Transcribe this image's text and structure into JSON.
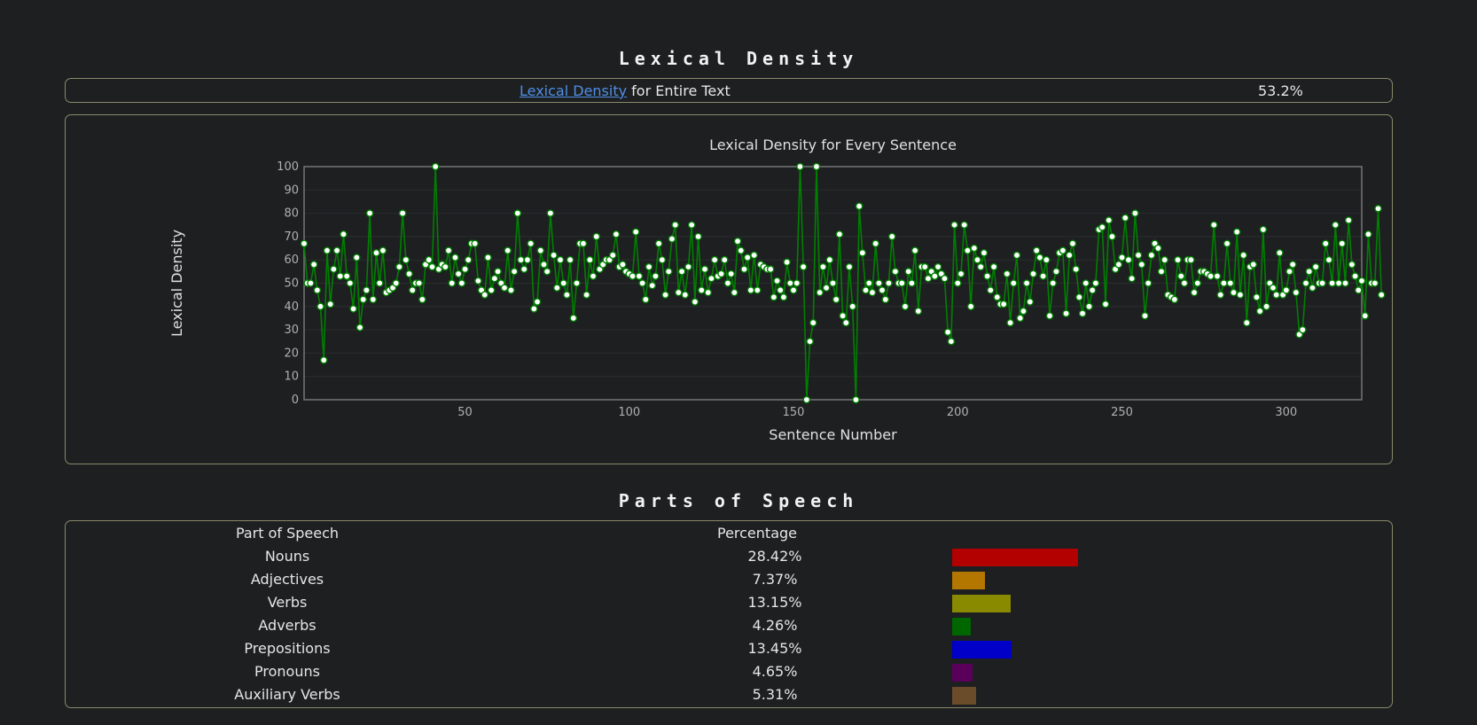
{
  "lexical_density": {
    "section_title": "Lexical Density",
    "link_text": "Lexical Density",
    "label_rest": " for Entire Text",
    "overall_value": "53.2%"
  },
  "parts_of_speech": {
    "section_title": "Parts of Speech",
    "col_part": "Part of Speech",
    "col_percentage": "Percentage",
    "rows": [
      {
        "name": "Nouns",
        "percent_text": "28.42%",
        "value": 28.42,
        "color": "#b30000"
      },
      {
        "name": "Adjectives",
        "percent_text": "7.37%",
        "value": 7.37,
        "color": "#b37700"
      },
      {
        "name": "Verbs",
        "percent_text": "13.15%",
        "value": 13.15,
        "color": "#8a8a00"
      },
      {
        "name": "Adverbs",
        "percent_text": "4.26%",
        "value": 4.26,
        "color": "#006600"
      },
      {
        "name": "Prepositions",
        "percent_text": "13.45%",
        "value": 13.45,
        "color": "#0000c8"
      },
      {
        "name": "Pronouns",
        "percent_text": "4.65%",
        "value": 4.65,
        "color": "#5a005a"
      },
      {
        "name": "Auxiliary Verbs",
        "percent_text": "5.31%",
        "value": 5.31,
        "color": "#6a4c2a"
      }
    ]
  },
  "chart_data": {
    "type": "line",
    "title": "Lexical Density for Every Sentence",
    "xlabel": "Sentence Number",
    "ylabel": "Lexical Density",
    "xlim": [
      1,
      323
    ],
    "ylim": [
      0,
      100
    ],
    "xticks": [
      50,
      100,
      150,
      200,
      250,
      300
    ],
    "yticks": [
      0,
      10,
      20,
      30,
      40,
      50,
      60,
      70,
      80,
      90,
      100
    ],
    "grid": true,
    "line_color": "#008000",
    "marker_color": "#ffffff",
    "series": [
      {
        "values": [
          67,
          50,
          50,
          58,
          47,
          40,
          17,
          64,
          41,
          56,
          64,
          53,
          71,
          53,
          50,
          39,
          61,
          31,
          43,
          47,
          80,
          43,
          63,
          50,
          64,
          46,
          47,
          48,
          50,
          57,
          80,
          60,
          54,
          47,
          50,
          50,
          43,
          58,
          60,
          57,
          100,
          56,
          58,
          57,
          64,
          50,
          61,
          54,
          50,
          56,
          60,
          67,
          67,
          51,
          47,
          45,
          61,
          47,
          52,
          55,
          50,
          48,
          64,
          47,
          55,
          80,
          60,
          56,
          60,
          67,
          39,
          42,
          64,
          58,
          55,
          80,
          62,
          48,
          60,
          50,
          45,
          60,
          35,
          50,
          67,
          67,
          45,
          60,
          53,
          70,
          56,
          58,
          60,
          60,
          62,
          71,
          57,
          58,
          55,
          54,
          53,
          72,
          53,
          50,
          43,
          57,
          49,
          53,
          67,
          60,
          45,
          55,
          69,
          75,
          46,
          55,
          45,
          57,
          75,
          42,
          70,
          47,
          56,
          46,
          52,
          60,
          53,
          54,
          60,
          50,
          54,
          46,
          68,
          64,
          56,
          61,
          47,
          62,
          47,
          58,
          57,
          56,
          56,
          44,
          51,
          47,
          44,
          59,
          50,
          47,
          50,
          100,
          57,
          0,
          25,
          33,
          100,
          46,
          57,
          48,
          60,
          50,
          43,
          71,
          36,
          33,
          57,
          40,
          0,
          83,
          63,
          47,
          50,
          46,
          67,
          50,
          47,
          43,
          50,
          70,
          55,
          50,
          50,
          40,
          55,
          50,
          64,
          38,
          57,
          57,
          52,
          55,
          53,
          57,
          54,
          52,
          29,
          25,
          75,
          50,
          54,
          75,
          64,
          40,
          65,
          60,
          57,
          63,
          53,
          47,
          57,
          44,
          41,
          41,
          54,
          33,
          50,
          62,
          35,
          38,
          50,
          42,
          54,
          64,
          61,
          53,
          60,
          36,
          50,
          55,
          63,
          64,
          37,
          62,
          67,
          56,
          44,
          37,
          50,
          40,
          47,
          50,
          73,
          74,
          41,
          77,
          70,
          56,
          58,
          61,
          78,
          60,
          52,
          80,
          62,
          58,
          36,
          50,
          62,
          67,
          65,
          55,
          60,
          45,
          44,
          43,
          60,
          53,
          50,
          60,
          60,
          46,
          50,
          55,
          55,
          54,
          53,
          75,
          53,
          45,
          50,
          67,
          50,
          46,
          72,
          45,
          62,
          33,
          57,
          58,
          44,
          38,
          73,
          40,
          50,
          48,
          45,
          63,
          45,
          47,
          55,
          58,
          46,
          28,
          30,
          50,
          55,
          48,
          57,
          50,
          50,
          67,
          60,
          50,
          75,
          50,
          67,
          50,
          77,
          58,
          53,
          47,
          51,
          36,
          71,
          50,
          50,
          82,
          45
        ]
      }
    ]
  }
}
